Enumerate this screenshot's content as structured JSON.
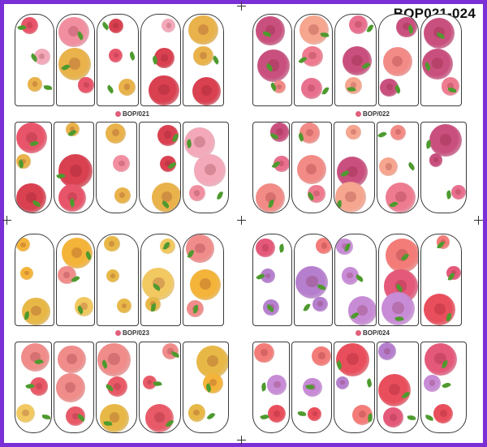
{
  "header": {
    "title": "BOP021-024"
  },
  "sheets": [
    {
      "label": "BOP/021",
      "palette": [
        "#e8556a",
        "#f3a9b9",
        "#e9b24a",
        "#d94050",
        "#f18fa0"
      ]
    },
    {
      "label": "BOP/022",
      "palette": [
        "#f28a86",
        "#e8708e",
        "#c9507e",
        "#f6a58f",
        "#ee7b90"
      ]
    },
    {
      "label": "BOP/023",
      "palette": [
        "#f4b43a",
        "#e8b847",
        "#e85a68",
        "#f08c8a",
        "#f2c860"
      ]
    },
    {
      "label": "BOP/024",
      "palette": [
        "#e94e5c",
        "#c88bd6",
        "#f37c78",
        "#e4587a",
        "#b67fce"
      ]
    }
  ],
  "colors": {
    "frame": "#7b2fd6",
    "leaf": "#4e9a2e",
    "nail_outline": "#3a3a3a"
  }
}
